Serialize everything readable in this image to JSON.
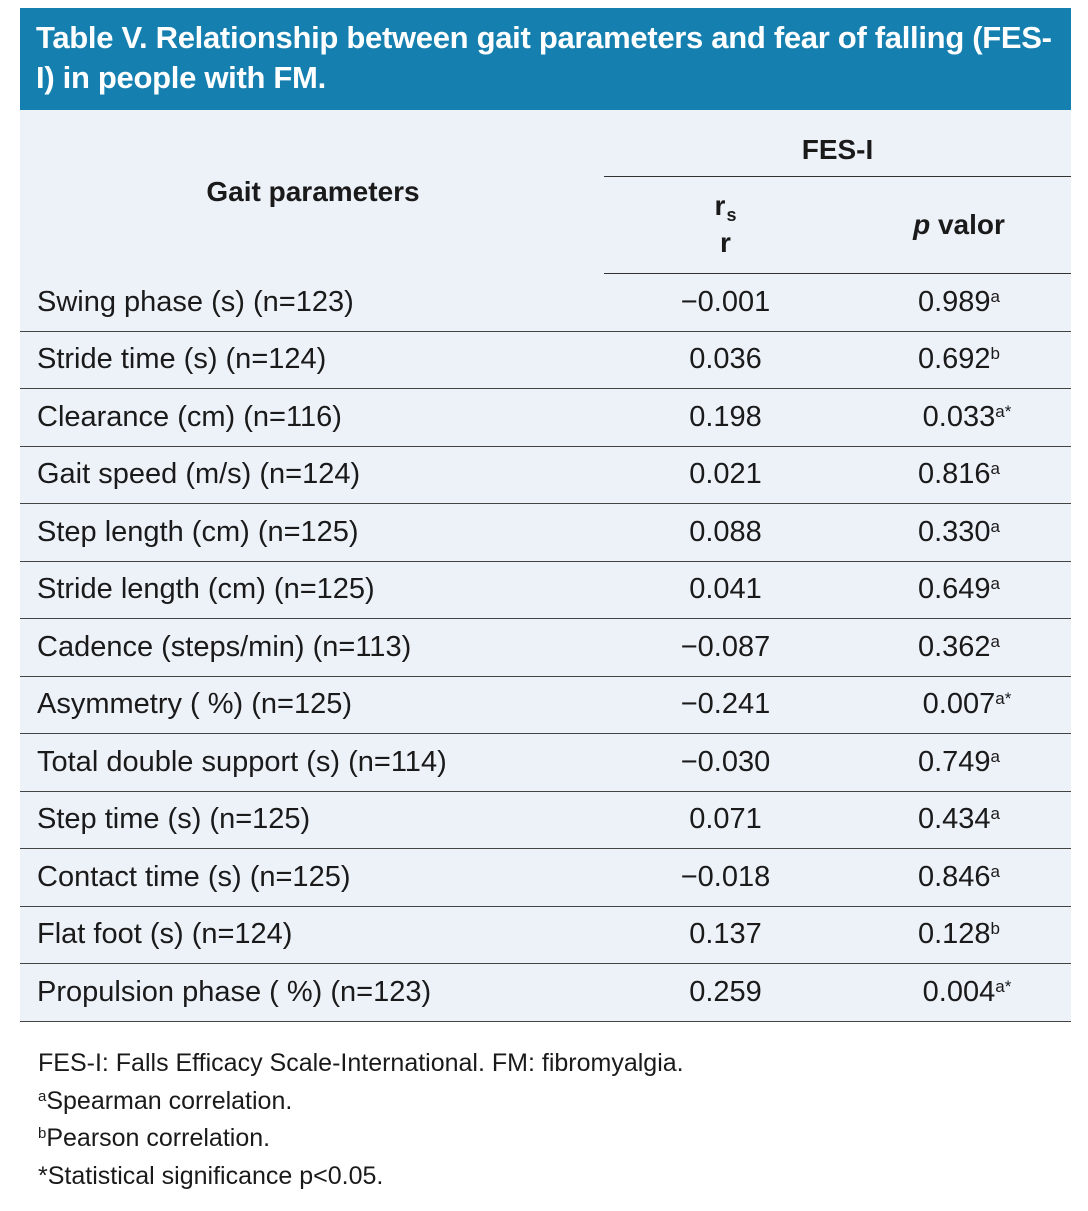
{
  "title": "Table V. Relationship between gait parameters and fear of falling (FES-I) in people with FM.",
  "header": {
    "col1": "Gait parameters",
    "group": "FES-I",
    "col2_main": "r",
    "col2_sub": "s",
    "col2_line2": "r",
    "col3_italic": "p",
    "col3_rest": " valor"
  },
  "rows": [
    {
      "param": "Swing phase (s) (n=123)",
      "r": "−0.001",
      "p": "0.989",
      "sup": "a"
    },
    {
      "param": "Stride time (s) (n=124)",
      "r": "0.036",
      "p": "0.692",
      "sup": "b"
    },
    {
      "param": "Clearance (cm) (n=116)",
      "r": "0.198",
      "p": "0.033",
      "sup": "a*"
    },
    {
      "param": "Gait speed (m/s) (n=124)",
      "r": "0.021",
      "p": "0.816",
      "sup": "a"
    },
    {
      "param": "Step length (cm) (n=125)",
      "r": "0.088",
      "p": "0.330",
      "sup": "a"
    },
    {
      "param": "Stride length (cm) (n=125)",
      "r": "0.041",
      "p": "0.649",
      "sup": "a"
    },
    {
      "param": "Cadence (steps/min) (n=113)",
      "r": "−0.087",
      "p": "0.362",
      "sup": "a"
    },
    {
      "param": "Asymmetry ( %) (n=125)",
      "r": "−0.241",
      "p": "0.007",
      "sup": "a*"
    },
    {
      "param": "Total double support (s) (n=114)",
      "r": "−0.030",
      "p": "0.749",
      "sup": "a"
    },
    {
      "param": "Step time (s) (n=125)",
      "r": "0.071",
      "p": "0.434",
      "sup": "a"
    },
    {
      "param": "Contact time (s) (n=125)",
      "r": "−0.018",
      "p": "0.846",
      "sup": "a"
    },
    {
      "param": "Flat foot (s) (n=124)",
      "r": "0.137",
      "p": "0.128",
      "sup": "b"
    },
    {
      "param": "Propulsion phase ( %) (n=123)",
      "r": "0.259",
      "p": "0.004",
      "sup": "a*"
    }
  ],
  "footnotes": {
    "abbrev": "FES-I: Falls Efficacy Scale-International. FM: fibromyalgia.",
    "a_mark": "a",
    "a_text": "Spearman correlation.",
    "b_mark": "b",
    "b_text": "Pearson correlation.",
    "star": "*Statistical significance p<0.05."
  },
  "colors": {
    "title_bg": "#1580b0",
    "table_bg": "#edf1f8"
  }
}
